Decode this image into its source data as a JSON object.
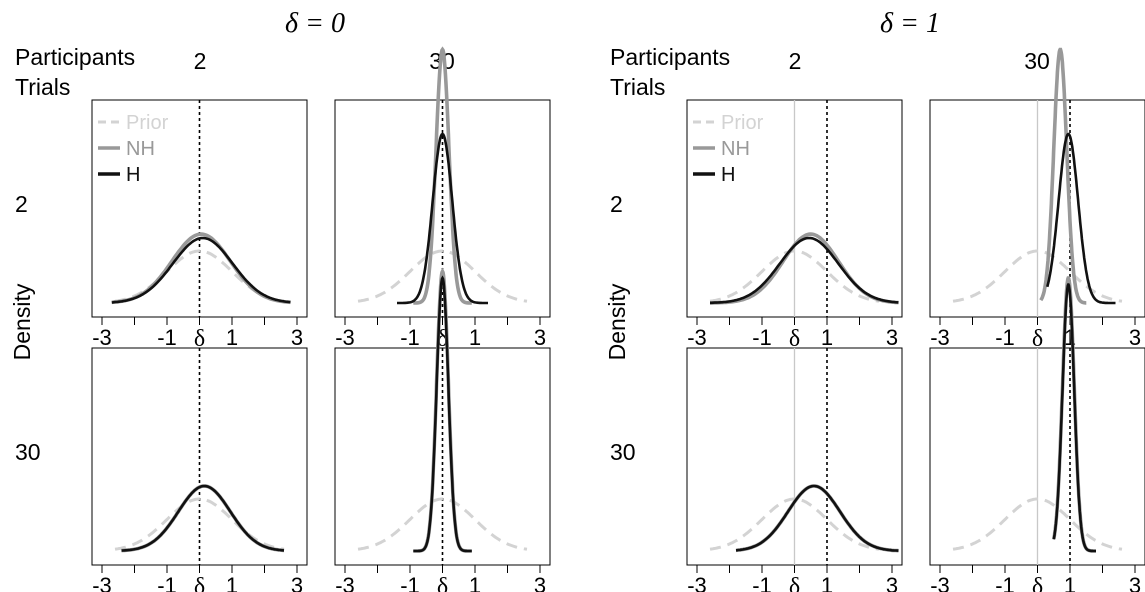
{
  "chart_data": {
    "type": "line",
    "panel_titles": [
      "δ = 0",
      "δ = 1"
    ],
    "row_header": "Participants",
    "col_header": "Trials",
    "size_levels": [
      "2",
      "30"
    ],
    "ylabel": "Density",
    "xticks": [
      -3,
      -1,
      1,
      3
    ],
    "delta_tick_label": "δ",
    "xlim": [
      -3,
      3
    ],
    "legend": [
      "Prior",
      "NH",
      "H"
    ],
    "legend_placement": "top-left",
    "grid": false,
    "series_styles": {
      "Prior": {
        "color": "#d3d3d3",
        "dash": "dashed"
      },
      "NH": {
        "color": "#999999",
        "dash": "solid"
      },
      "H": {
        "color": "#111111",
        "dash": "solid"
      }
    },
    "panels": [
      {
        "group": 0,
        "participants": "2",
        "trials": "2",
        "delta": 0,
        "prior": {
          "mean": 0,
          "sd": 1,
          "peak": 0.4
        },
        "nh": {
          "mean": 0.05,
          "sd": 0.9,
          "peak": 0.53,
          "lo": -2.7,
          "hi": 2.8
        },
        "h": {
          "mean": 0.1,
          "sd": 0.92,
          "peak": 0.5,
          "lo": -2.7,
          "hi": 2.8
        }
      },
      {
        "group": 0,
        "participants": "30",
        "trials": "2",
        "delta": 0,
        "prior": {
          "mean": 0,
          "sd": 1,
          "peak": 0.4
        },
        "nh": {
          "mean": 0,
          "sd": 0.2,
          "peak": 1.95,
          "lo": -0.9,
          "hi": 0.9
        },
        "h": {
          "mean": 0,
          "sd": 0.3,
          "peak": 1.3,
          "lo": -1.4,
          "hi": 1.4
        }
      },
      {
        "group": 0,
        "participants": "2",
        "trials": "30",
        "delta": 0,
        "prior": {
          "mean": 0,
          "sd": 1,
          "peak": 0.4
        },
        "nh": {
          "mean": 0.15,
          "sd": 0.8,
          "peak": 0.5,
          "lo": -2.4,
          "hi": 2.6
        },
        "h": {
          "mean": 0.15,
          "sd": 0.8,
          "peak": 0.5,
          "lo": -2.4,
          "hi": 2.6
        }
      },
      {
        "group": 0,
        "participants": "30",
        "trials": "30",
        "delta": 0,
        "prior": {
          "mean": 0,
          "sd": 1,
          "peak": 0.4
        },
        "nh": {
          "mean": 0,
          "sd": 0.18,
          "peak": 2.15,
          "lo": -0.9,
          "hi": 0.9
        },
        "h": {
          "mean": 0,
          "sd": 0.18,
          "peak": 2.1,
          "lo": -0.9,
          "hi": 0.9
        }
      },
      {
        "group": 1,
        "participants": "2",
        "trials": "2",
        "delta": 1,
        "prior": {
          "mean": 0,
          "sd": 1,
          "peak": 0.4
        },
        "nh": {
          "mean": 0.5,
          "sd": 0.85,
          "peak": 0.53,
          "lo": -2.6,
          "hi": 3.2
        },
        "h": {
          "mean": 0.45,
          "sd": 0.9,
          "peak": 0.5,
          "lo": -2.6,
          "hi": 3.2
        }
      },
      {
        "group": 1,
        "participants": "30",
        "trials": "2",
        "delta": 1,
        "prior": {
          "mean": 0,
          "sd": 1,
          "peak": 0.4
        },
        "nh": {
          "mean": 0.7,
          "sd": 0.2,
          "peak": 1.95,
          "lo": 0.1,
          "hi": 1.5
        },
        "h": {
          "mean": 0.95,
          "sd": 0.3,
          "peak": 1.3,
          "lo": 0.3,
          "hi": 2.4
        }
      },
      {
        "group": 1,
        "participants": "2",
        "trials": "30",
        "delta": 1,
        "prior": {
          "mean": 0,
          "sd": 1,
          "peak": 0.4
        },
        "nh": {
          "mean": 0.6,
          "sd": 0.8,
          "peak": 0.5,
          "lo": -1.8,
          "hi": 3.2
        },
        "h": {
          "mean": 0.6,
          "sd": 0.8,
          "peak": 0.5,
          "lo": -1.8,
          "hi": 3.2
        }
      },
      {
        "group": 1,
        "participants": "30",
        "trials": "30",
        "delta": 1,
        "prior": {
          "mean": 0,
          "sd": 1,
          "peak": 0.4
        },
        "nh": {
          "mean": 0.95,
          "sd": 0.18,
          "peak": 2.1,
          "lo": 0.5,
          "hi": 1.8
        },
        "h": {
          "mean": 0.95,
          "sd": 0.18,
          "peak": 2.05,
          "lo": 0.5,
          "hi": 1.8
        }
      }
    ]
  }
}
